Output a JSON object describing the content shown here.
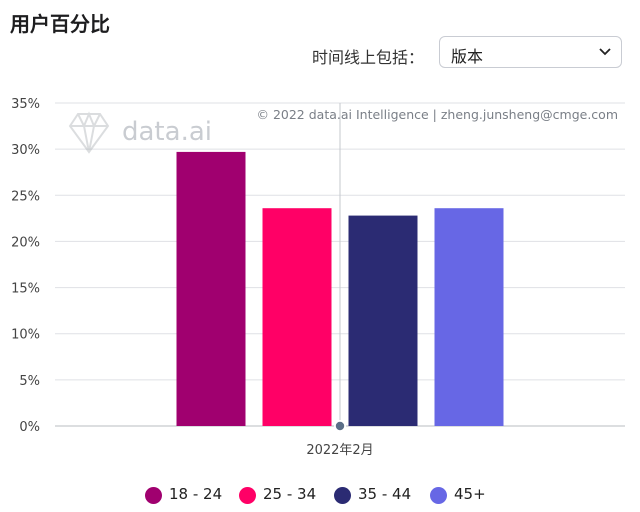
{
  "header": {
    "title": "用户百分比",
    "filter_label": "时间线上包括：",
    "filter_value": "版本"
  },
  "watermark": {
    "logo_text": "data.ai",
    "copyright": "© 2022 data.ai Intelligence | zheng.junsheng@cmge.com"
  },
  "colors": {
    "s1": "#a0006f",
    "s2": "#ff0066",
    "s3": "#2b2b73",
    "s4": "#6767e5"
  },
  "chart_data": {
    "type": "bar",
    "categories": [
      "2022年2月"
    ],
    "series": [
      {
        "name": "18 - 24",
        "values": [
          29.7
        ]
      },
      {
        "name": "25 - 34",
        "values": [
          23.6
        ]
      },
      {
        "name": "35 - 44",
        "values": [
          22.8
        ]
      },
      {
        "name": "45+",
        "values": [
          23.6
        ]
      }
    ],
    "ylim": [
      0,
      35
    ],
    "yticks": [
      "0%",
      "5%",
      "10%",
      "15%",
      "20%",
      "25%",
      "30%",
      "35%"
    ],
    "grid": true,
    "legend": "bottom"
  }
}
